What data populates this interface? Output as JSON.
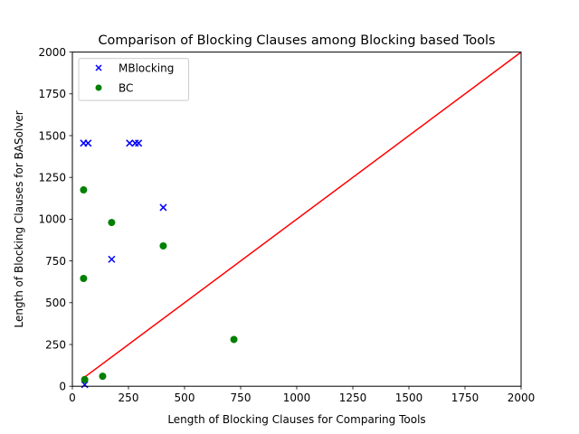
{
  "chart_data": {
    "type": "scatter",
    "title": "Comparison of Blocking Clauses among Blocking based Tools",
    "xlabel": "Length of Blocking Clauses for Comparing Tools",
    "ylabel": "Length of Blocking Clauses for BASolver",
    "xlim": [
      0,
      2000
    ],
    "ylim": [
      0,
      2000
    ],
    "xticks": [
      0,
      250,
      500,
      750,
      1000,
      1250,
      1500,
      1750,
      2000
    ],
    "yticks": [
      0,
      250,
      500,
      750,
      1000,
      1250,
      1500,
      1750,
      2000
    ],
    "grid": false,
    "legend_position": "top-left",
    "reference_line": {
      "x": [
        50,
        2000
      ],
      "y": [
        50,
        2000
      ],
      "color": "#ff0000"
    },
    "series": [
      {
        "name": "MBlocking",
        "marker": "x",
        "color": "#0000ff",
        "points": [
          {
            "x": 50,
            "y": 1455
          },
          {
            "x": 70,
            "y": 1455
          },
          {
            "x": 255,
            "y": 1455
          },
          {
            "x": 280,
            "y": 1455
          },
          {
            "x": 295,
            "y": 1455
          },
          {
            "x": 405,
            "y": 1070
          },
          {
            "x": 175,
            "y": 760
          },
          {
            "x": 55,
            "y": 10
          }
        ]
      },
      {
        "name": "BC",
        "marker": "o",
        "color": "#008000",
        "points": [
          {
            "x": 50,
            "y": 1175
          },
          {
            "x": 175,
            "y": 980
          },
          {
            "x": 405,
            "y": 840
          },
          {
            "x": 50,
            "y": 645
          },
          {
            "x": 720,
            "y": 280
          },
          {
            "x": 135,
            "y": 60
          },
          {
            "x": 55,
            "y": 40
          }
        ]
      }
    ]
  }
}
